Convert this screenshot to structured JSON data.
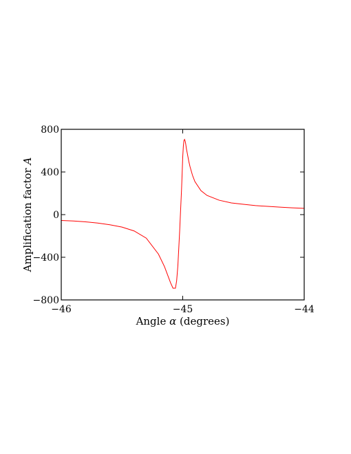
{
  "chart_data": {
    "type": "line",
    "title": "",
    "xlabel": "Angle α (degrees)",
    "xlabel_parts": {
      "prefix": "Angle ",
      "symbol": "α",
      "suffix": " (degrees)"
    },
    "ylabel": "Amplification factor A",
    "ylabel_parts": {
      "prefix": "Amplification factor ",
      "symbol": "A"
    },
    "xlim": [
      -46,
      -44
    ],
    "ylim": [
      -800,
      800
    ],
    "x_ticks": [
      -46,
      -45,
      -44
    ],
    "x_tick_labels": [
      "−46",
      "−45",
      "−44"
    ],
    "y_ticks": [
      -800,
      -400,
      0,
      400,
      800
    ],
    "y_tick_labels": [
      "−800",
      "−400",
      "0",
      "400",
      "800"
    ],
    "grid": false,
    "series": [
      {
        "color": "#ff0000",
        "x": [
          -46.0,
          -45.9,
          -45.8,
          -45.7,
          -45.6,
          -45.5,
          -45.4,
          -45.3,
          -45.2,
          -45.15,
          -45.1,
          -45.08,
          -45.06,
          -45.05,
          -45.04,
          -45.03,
          -45.025,
          -45.02,
          -45.01,
          -45.005,
          -45.0,
          -44.995,
          -44.99,
          -44.985,
          -44.98,
          -44.975,
          -44.97,
          -44.96,
          -44.95,
          -44.94,
          -44.92,
          -44.9,
          -44.85,
          -44.8,
          -44.7,
          -44.6,
          -44.5,
          -44.4,
          -44.3,
          -44.2,
          -44.1,
          -44.0
        ],
        "y": [
          -55,
          -60,
          -68,
          -79,
          -95,
          -117,
          -153,
          -221,
          -370,
          -488,
          -640,
          -690,
          -690,
          -620,
          -480,
          -260,
          -150,
          -20,
          230,
          380,
          540,
          640,
          695,
          705,
          690,
          660,
          620,
          560,
          500,
          450,
          370,
          310,
          225,
          180,
          135,
          110,
          97,
          85,
          77,
          70,
          64,
          59
        ]
      }
    ]
  }
}
